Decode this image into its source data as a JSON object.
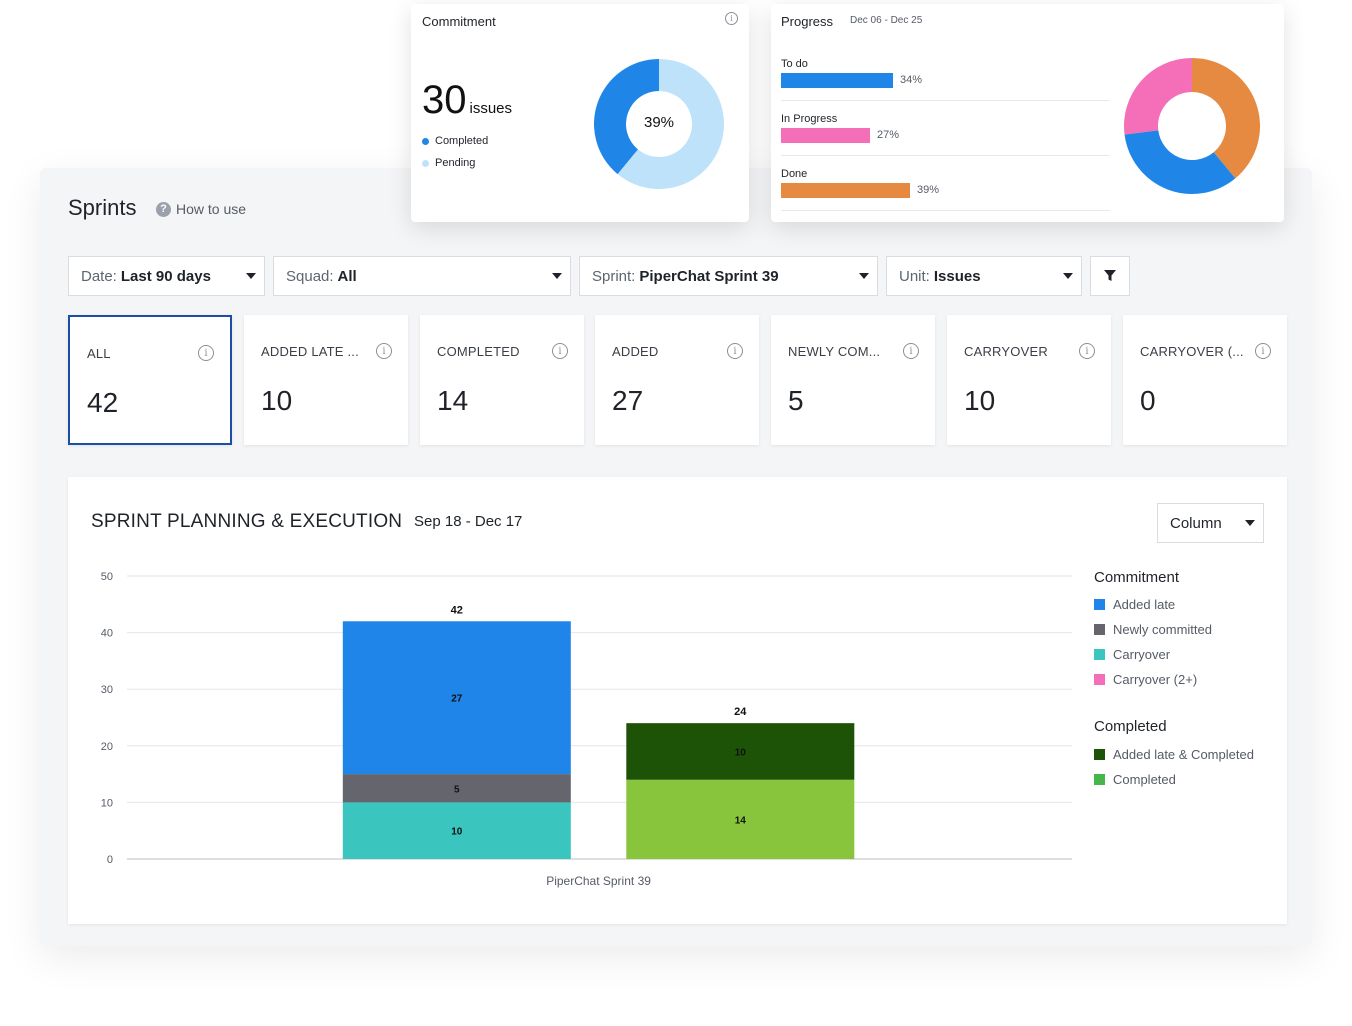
{
  "header": {
    "title": "Sprints",
    "help_label": "How to use"
  },
  "filters": [
    {
      "key": "Date:",
      "value": "Last 90 days"
    },
    {
      "key": "Squad:",
      "value": "All"
    },
    {
      "key": "Sprint:",
      "value": "PiperChat Sprint 39"
    },
    {
      "key": "Unit:",
      "value": "Issues"
    }
  ],
  "stats": [
    {
      "label": "ALL",
      "value": "42"
    },
    {
      "label": "ADDED LATE ...",
      "value": "10"
    },
    {
      "label": "COMPLETED",
      "value": "14"
    },
    {
      "label": "ADDED",
      "value": "27"
    },
    {
      "label": "NEWLY COM...",
      "value": "5"
    },
    {
      "label": "CARRYOVER",
      "value": "10"
    },
    {
      "label": "CARRYOVER (...",
      "value": "0"
    }
  ],
  "commitment": {
    "title": "Commitment",
    "count": "30",
    "unit": "issues",
    "center_label": "39%",
    "completed_fraction": 0.39,
    "legend": [
      {
        "label": "Completed",
        "color": "#1f86e8"
      },
      {
        "label": "Pending",
        "color": "#bfe2fb"
      }
    ]
  },
  "progress": {
    "title": "Progress",
    "range": "Dec 06 - Dec 25",
    "items": [
      {
        "label": "To do",
        "pct": "34%",
        "value": 34,
        "color": "#1f86e8"
      },
      {
        "label": "In Progress",
        "pct": "27%",
        "value": 27,
        "color": "#f46fb8"
      },
      {
        "label": "Done",
        "pct": "39%",
        "value": 39,
        "color": "#e58a40"
      }
    ]
  },
  "chart": {
    "title": "SPRINT PLANNING & EXECUTION",
    "range": "Sep 18 - Dec 17",
    "view_select": "Column",
    "legend_groups": [
      {
        "title": "Commitment",
        "items": [
          {
            "label": "Added late",
            "color": "#2085e8"
          },
          {
            "label": "Newly committed",
            "color": "#64656d"
          },
          {
            "label": "Carryover",
            "color": "#3ac5bf"
          },
          {
            "label": "Carryover (2+)",
            "color": "#f46fb8"
          }
        ]
      },
      {
        "title": "Completed",
        "items": [
          {
            "label": "Added late & Completed",
            "color": "#1d5306"
          },
          {
            "label": "Completed",
            "color": "#45b649"
          }
        ]
      }
    ]
  },
  "chart_data": {
    "type": "bar",
    "stacked": true,
    "categories": [
      "PiperChat Sprint 39"
    ],
    "ylim": [
      0,
      50
    ],
    "yticks": [
      0,
      10,
      20,
      30,
      40,
      50
    ],
    "grid": true,
    "legend_position": "right",
    "stacks": [
      {
        "total": 42,
        "segments": [
          {
            "value": 10,
            "color": "#3ac5bf"
          },
          {
            "value": 5,
            "color": "#64656d"
          },
          {
            "value": 27,
            "color": "#2085e8"
          }
        ]
      },
      {
        "total": 24,
        "segments": [
          {
            "value": 14,
            "color": "#88c43c"
          },
          {
            "value": 10,
            "color": "#1d5306"
          }
        ]
      }
    ]
  }
}
